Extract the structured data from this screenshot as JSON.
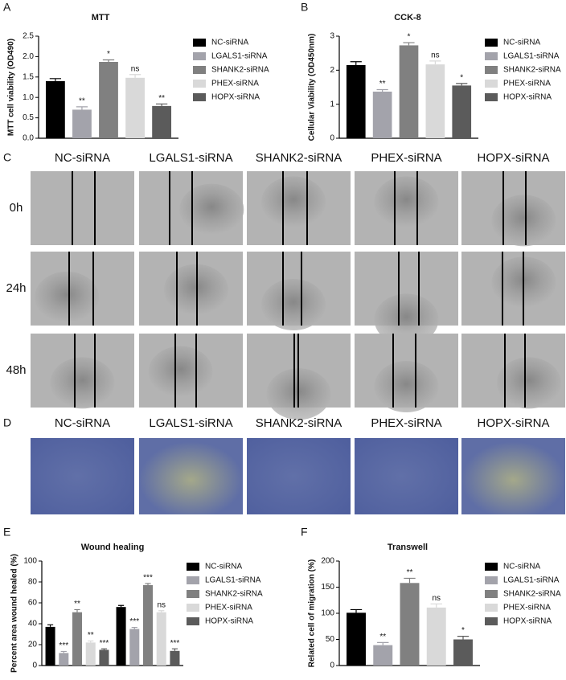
{
  "panel_labels": [
    "A",
    "B",
    "C",
    "D",
    "E",
    "F"
  ],
  "wound_images": {
    "columns": [
      "NC-siRNA",
      "LGALS1-siRNA",
      "SHANK2-siRNA",
      "PHEX-siRNA",
      "HOPX-siRNA"
    ],
    "rows": [
      "0h",
      "24h",
      "48h"
    ]
  },
  "transwell_images": {
    "columns": [
      "NC-siRNA",
      "LGALS1-siRNA",
      "SHANK2-siRNA",
      "PHEX-siRNA",
      "HOPX-siRNA"
    ]
  },
  "chart_data": [
    {
      "type": "bar",
      "title": "MTT",
      "y_label": "MTT cell viability (OD490)",
      "categories": [
        null
      ],
      "ylim": [
        0,
        2.5
      ],
      "yticks": [
        {
          "value": 0,
          "label": "0.0"
        },
        0.5,
        {
          "value": 1,
          "label": "1.0"
        },
        1.5,
        {
          "value": 2,
          "label": "2.0"
        },
        2.5
      ],
      "series": [
        {
          "name": "NC-siRNA",
          "color": "#000000",
          "values": [
            1.4
          ],
          "errors": [
            0.06
          ],
          "significance": [
            null
          ]
        },
        {
          "name": "LGALS1-siRNA",
          "color": "#a3a3ab",
          "values": [
            0.7
          ],
          "errors": [
            0.07
          ],
          "significance": [
            "**"
          ]
        },
        {
          "name": "SHANK2-siRNA",
          "color": "#808080",
          "values": [
            1.87
          ],
          "errors": [
            0.05
          ],
          "significance": [
            "*"
          ]
        },
        {
          "name": "PHEX-siRNA",
          "color": "#d9d9d9",
          "values": [
            1.48
          ],
          "errors": [
            0.08
          ],
          "significance": [
            "ns"
          ]
        },
        {
          "name": "HOPX-siRNA",
          "color": "#5b5b5b",
          "values": [
            0.79
          ],
          "errors": [
            0.05
          ],
          "significance": [
            "**"
          ]
        }
      ]
    },
    {
      "type": "bar",
      "title": "CCK-8",
      "y_label": "Cellular Viability (OD450nm)",
      "categories": [
        null
      ],
      "ylim": [
        0,
        3
      ],
      "yticks": [
        0,
        1,
        2,
        3
      ],
      "series": [
        {
          "name": "NC-siRNA",
          "color": "#000000",
          "values": [
            2.15
          ],
          "errors": [
            0.1
          ],
          "significance": [
            null
          ]
        },
        {
          "name": "LGALS1-siRNA",
          "color": "#a3a3ab",
          "values": [
            1.37
          ],
          "errors": [
            0.06
          ],
          "significance": [
            "**"
          ]
        },
        {
          "name": "SHANK2-siRNA",
          "color": "#808080",
          "values": [
            2.73
          ],
          "errors": [
            0.08
          ],
          "significance": [
            "*"
          ]
        },
        {
          "name": "PHEX-siRNA",
          "color": "#d9d9d9",
          "values": [
            2.17
          ],
          "errors": [
            0.1
          ],
          "significance": [
            "ns"
          ]
        },
        {
          "name": "HOPX-siRNA",
          "color": "#5b5b5b",
          "values": [
            1.55
          ],
          "errors": [
            0.06
          ],
          "significance": [
            "*"
          ]
        }
      ]
    },
    {
      "type": "bar",
      "title": "Wound healing",
      "y_label": "Percent area wound healed (%)",
      "categories": [
        null,
        null
      ],
      "ylim": [
        0,
        100
      ],
      "yticks": [
        0,
        20,
        40,
        60,
        80,
        100
      ],
      "series": [
        {
          "name": "NC-siRNA",
          "color": "#000000",
          "values": [
            37,
            56
          ],
          "errors": [
            2,
            1.5
          ],
          "significance": [
            null,
            null
          ]
        },
        {
          "name": "LGALS1-siRNA",
          "color": "#a3a3ab",
          "values": [
            12,
            35
          ],
          "errors": [
            1.5,
            1.5
          ],
          "significance": [
            "***",
            "***"
          ]
        },
        {
          "name": "SHANK2-siRNA",
          "color": "#808080",
          "values": [
            51,
            77
          ],
          "errors": [
            2.5,
            1.5
          ],
          "significance": [
            "**",
            "***"
          ]
        },
        {
          "name": "PHEX-siRNA",
          "color": "#d9d9d9",
          "values": [
            22,
            51
          ],
          "errors": [
            1.5,
            1.5
          ],
          "significance": [
            "**",
            "ns"
          ]
        },
        {
          "name": "HOPX-siRNA",
          "color": "#5b5b5b",
          "values": [
            15,
            14
          ],
          "errors": [
            1,
            2
          ],
          "significance": [
            "***",
            "***"
          ]
        }
      ]
    },
    {
      "type": "bar",
      "title": "Transwell",
      "y_label": "Related cell of migration (%)",
      "categories": [
        null
      ],
      "ylim": [
        0,
        200
      ],
      "yticks": [
        0,
        50,
        100,
        150,
        200
      ],
      "series": [
        {
          "name": "NC-siRNA",
          "color": "#000000",
          "values": [
            101
          ],
          "errors": [
            6
          ],
          "significance": [
            null
          ]
        },
        {
          "name": "LGALS1-siRNA",
          "color": "#a3a3ab",
          "values": [
            39
          ],
          "errors": [
            5
          ],
          "significance": [
            "**"
          ]
        },
        {
          "name": "SHANK2-siRNA",
          "color": "#808080",
          "values": [
            158
          ],
          "errors": [
            9
          ],
          "significance": [
            "**"
          ]
        },
        {
          "name": "PHEX-siRNA",
          "color": "#d9d9d9",
          "values": [
            111
          ],
          "errors": [
            7
          ],
          "significance": [
            "ns"
          ]
        },
        {
          "name": "HOPX-siRNA",
          "color": "#5b5b5b",
          "values": [
            50
          ],
          "errors": [
            6
          ],
          "significance": [
            "*"
          ]
        }
      ]
    }
  ]
}
